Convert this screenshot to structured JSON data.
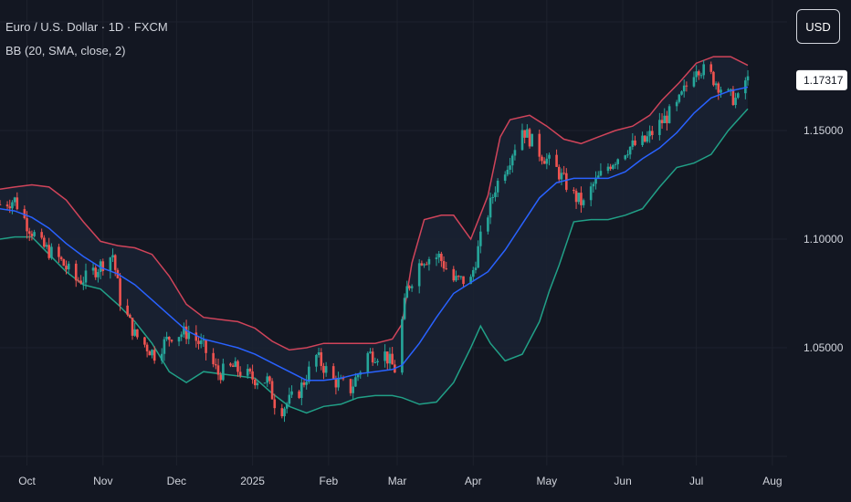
{
  "header": {
    "symbol_title": "Euro / U.S. Dollar · 1D · FXCM",
    "indicator_label": "BB (20, SMA, close, 2)",
    "currency_button": "USD"
  },
  "colors": {
    "background": "#131722",
    "grid": "#1e222d",
    "text": "#d1d4dc",
    "up_candle": "#26a69a",
    "down_candle": "#ef5350",
    "bb_upper": "#d0445a",
    "bb_lower": "#21a087",
    "bb_basis": "#2962ff",
    "bb_fill": "#1a2233"
  },
  "chart_data": {
    "type": "candlestick",
    "symbol": "Euro / U.S. Dollar",
    "interval": "1D",
    "source": "FXCM",
    "indicator": "BB (20, SMA, close, 2)",
    "current_price": "1.17317",
    "ylim": [
      1.0,
      1.2
    ],
    "y_ticks": [
      "1.05000",
      "1.10000",
      "1.15000"
    ],
    "x_labels": [
      "Oct",
      "Nov",
      "Dec",
      "2025",
      "Feb",
      "Mar",
      "Apr",
      "May",
      "Jun",
      "Jul",
      "Aug"
    ],
    "grid": true,
    "close_path": [
      [
        "Sep 20",
        1.116
      ],
      [
        "Sep 26",
        1.118
      ],
      [
        "Oct 1",
        1.107
      ],
      [
        "Oct 7",
        1.097
      ],
      [
        "Oct 14",
        1.091
      ],
      [
        "Oct 21",
        1.081
      ],
      [
        "Oct 25",
        1.082
      ],
      [
        "Oct 31",
        1.088
      ],
      [
        "Nov 5",
        1.093
      ],
      [
        "Nov 8",
        1.072
      ],
      [
        "Nov 14",
        1.056
      ],
      [
        "Nov 22",
        1.047
      ],
      [
        "Nov 29",
        1.056
      ],
      [
        "Dec 6",
        1.057
      ],
      [
        "Dec 12",
        1.05
      ],
      [
        "Dec 18",
        1.038
      ],
      [
        "Dec 24",
        1.041
      ],
      [
        "Jan 1",
        1.036
      ],
      [
        "Jan 7",
        1.035
      ],
      [
        "Jan 10",
        1.025
      ],
      [
        "Jan 13",
        1.022
      ],
      [
        "Jan 20",
        1.03
      ],
      [
        "Jan 27",
        1.046
      ],
      [
        "Feb 3",
        1.035
      ],
      [
        "Feb 10",
        1.031
      ],
      [
        "Feb 17",
        1.047
      ],
      [
        "Feb 24",
        1.047
      ],
      [
        "Feb 28",
        1.04
      ],
      [
        "Mar 5",
        1.077
      ],
      [
        "Mar 11",
        1.091
      ],
      [
        "Mar 18",
        1.092
      ],
      [
        "Mar 24",
        1.081
      ],
      [
        "Mar 31",
        1.081
      ],
      [
        "Apr 4",
        1.1
      ],
      [
        "Apr 10",
        1.124
      ],
      [
        "Apr 15",
        1.135
      ],
      [
        "Apr 21",
        1.151
      ],
      [
        "Apr 28",
        1.14
      ],
      [
        "May 5",
        1.132
      ],
      [
        "May 12",
        1.12
      ],
      [
        "May 16",
        1.116
      ],
      [
        "May 20",
        1.125
      ],
      [
        "May 27",
        1.135
      ],
      [
        "Jun 3",
        1.142
      ],
      [
        "Jun 10",
        1.145
      ],
      [
        "Jun 16",
        1.153
      ],
      [
        "Jun 23",
        1.161
      ],
      [
        "Jul 1",
        1.18
      ],
      [
        "Jul 7",
        1.175
      ],
      [
        "Jul 14",
        1.166
      ],
      [
        "Jul 18",
        1.164
      ],
      [
        "Jul 21",
        1.173
      ]
    ],
    "series": [
      {
        "name": "Upper",
        "values": [
          [
            "Sep 20",
            1.123
          ],
          [
            "Sep 26",
            1.124
          ],
          [
            "Oct 3",
            1.125
          ],
          [
            "Oct 10",
            1.124
          ],
          [
            "Oct 17",
            1.118
          ],
          [
            "Oct 24",
            1.108
          ],
          [
            "Oct 31",
            1.099
          ],
          [
            "Nov 7",
            1.097
          ],
          [
            "Nov 14",
            1.096
          ],
          [
            "Nov 21",
            1.093
          ],
          [
            "Nov 28",
            1.083
          ],
          [
            "Dec 5",
            1.07
          ],
          [
            "Dec 12",
            1.064
          ],
          [
            "Dec 19",
            1.063
          ],
          [
            "Dec 26",
            1.062
          ],
          [
            "Jan 2",
            1.059
          ],
          [
            "Jan 9",
            1.053
          ],
          [
            "Jan 16",
            1.049
          ],
          [
            "Jan 23",
            1.05
          ],
          [
            "Jan 30",
            1.052
          ],
          [
            "Feb 6",
            1.052
          ],
          [
            "Feb 13",
            1.052
          ],
          [
            "Feb 20",
            1.052
          ],
          [
            "Feb 27",
            1.054
          ],
          [
            "Mar 3",
            1.061
          ],
          [
            "Mar 7",
            1.089
          ],
          [
            "Mar 12",
            1.109
          ],
          [
            "Mar 19",
            1.111
          ],
          [
            "Mar 24",
            1.111
          ],
          [
            "Mar 31",
            1.1
          ],
          [
            "Apr 7",
            1.12
          ],
          [
            "Apr 12",
            1.147
          ],
          [
            "Apr 16",
            1.155
          ],
          [
            "Apr 24",
            1.157
          ],
          [
            "May 1",
            1.152
          ],
          [
            "May 8",
            1.146
          ],
          [
            "May 15",
            1.144
          ],
          [
            "May 22",
            1.147
          ],
          [
            "May 29",
            1.15
          ],
          [
            "Jun 5",
            1.152
          ],
          [
            "Jun 12",
            1.157
          ],
          [
            "Jun 17",
            1.164
          ],
          [
            "Jun 24",
            1.172
          ],
          [
            "Jul 1",
            1.181
          ],
          [
            "Jul 8",
            1.184
          ],
          [
            "Jul 15",
            1.184
          ],
          [
            "Jul 22",
            1.18
          ]
        ]
      },
      {
        "name": "Basis",
        "values": [
          [
            "Sep 20",
            1.114
          ],
          [
            "Sep 26",
            1.113
          ],
          [
            "Oct 3",
            1.11
          ],
          [
            "Oct 10",
            1.105
          ],
          [
            "Oct 17",
            1.098
          ],
          [
            "Oct 24",
            1.092
          ],
          [
            "Oct 31",
            1.087
          ],
          [
            "Nov 7",
            1.084
          ],
          [
            "Nov 14",
            1.079
          ],
          [
            "Nov 21",
            1.072
          ],
          [
            "Nov 28",
            1.065
          ],
          [
            "Dec 5",
            1.058
          ],
          [
            "Dec 12",
            1.054
          ],
          [
            "Dec 19",
            1.052
          ],
          [
            "Dec 26",
            1.05
          ],
          [
            "Jan 2",
            1.047
          ],
          [
            "Jan 9",
            1.043
          ],
          [
            "Jan 16",
            1.039
          ],
          [
            "Jan 23",
            1.035
          ],
          [
            "Jan 30",
            1.035
          ],
          [
            "Feb 6",
            1.036
          ],
          [
            "Feb 13",
            1.038
          ],
          [
            "Feb 20",
            1.039
          ],
          [
            "Feb 27",
            1.04
          ],
          [
            "Mar 3",
            1.042
          ],
          [
            "Mar 10",
            1.052
          ],
          [
            "Mar 17",
            1.064
          ],
          [
            "Mar 24",
            1.075
          ],
          [
            "Mar 31",
            1.08
          ],
          [
            "Apr 7",
            1.085
          ],
          [
            "Apr 14",
            1.095
          ],
          [
            "Apr 21",
            1.107
          ],
          [
            "Apr 28",
            1.119
          ],
          [
            "May 5",
            1.126
          ],
          [
            "May 12",
            1.128
          ],
          [
            "May 19",
            1.128
          ],
          [
            "May 26",
            1.128
          ],
          [
            "Jun 2",
            1.131
          ],
          [
            "Jun 9",
            1.137
          ],
          [
            "Jun 16",
            1.142
          ],
          [
            "Jun 23",
            1.149
          ],
          [
            "Jun 30",
            1.158
          ],
          [
            "Jul 7",
            1.165
          ],
          [
            "Jul 14",
            1.168
          ],
          [
            "Jul 22",
            1.17
          ]
        ]
      },
      {
        "name": "Lower",
        "values": [
          [
            "Sep 20",
            1.1
          ],
          [
            "Sep 26",
            1.101
          ],
          [
            "Oct 3",
            1.101
          ],
          [
            "Oct 10",
            1.093
          ],
          [
            "Oct 17",
            1.085
          ],
          [
            "Oct 24",
            1.079
          ],
          [
            "Oct 31",
            1.077
          ],
          [
            "Nov 7",
            1.07
          ],
          [
            "Nov 14",
            1.062
          ],
          [
            "Nov 21",
            1.052
          ],
          [
            "Nov 28",
            1.039
          ],
          [
            "Dec 5",
            1.034
          ],
          [
            "Dec 12",
            1.039
          ],
          [
            "Dec 19",
            1.038
          ],
          [
            "Dec 26",
            1.037
          ],
          [
            "Jan 2",
            1.036
          ],
          [
            "Jan 9",
            1.029
          ],
          [
            "Jan 16",
            1.023
          ],
          [
            "Jan 23",
            1.02
          ],
          [
            "Jan 30",
            1.023
          ],
          [
            "Feb 6",
            1.024
          ],
          [
            "Feb 13",
            1.027
          ],
          [
            "Feb 20",
            1.028
          ],
          [
            "Feb 27",
            1.028
          ],
          [
            "Mar 3",
            1.027
          ],
          [
            "Mar 10",
            1.024
          ],
          [
            "Mar 17",
            1.025
          ],
          [
            "Mar 24",
            1.034
          ],
          [
            "Mar 31",
            1.05
          ],
          [
            "Apr 4",
            1.06
          ],
          [
            "Apr 8",
            1.052
          ],
          [
            "Apr 14",
            1.044
          ],
          [
            "Apr 21",
            1.047
          ],
          [
            "Apr 28",
            1.062
          ],
          [
            "May 2",
            1.076
          ],
          [
            "May 6",
            1.088
          ],
          [
            "May 12",
            1.108
          ],
          [
            "May 19",
            1.109
          ],
          [
            "May 26",
            1.109
          ],
          [
            "Jun 2",
            1.111
          ],
          [
            "Jun 9",
            1.114
          ],
          [
            "Jun 16",
            1.124
          ],
          [
            "Jun 23",
            1.133
          ],
          [
            "Jun 30",
            1.135
          ],
          [
            "Jul 7",
            1.139
          ],
          [
            "Jul 14",
            1.15
          ],
          [
            "Jul 22",
            1.16
          ]
        ]
      }
    ]
  }
}
